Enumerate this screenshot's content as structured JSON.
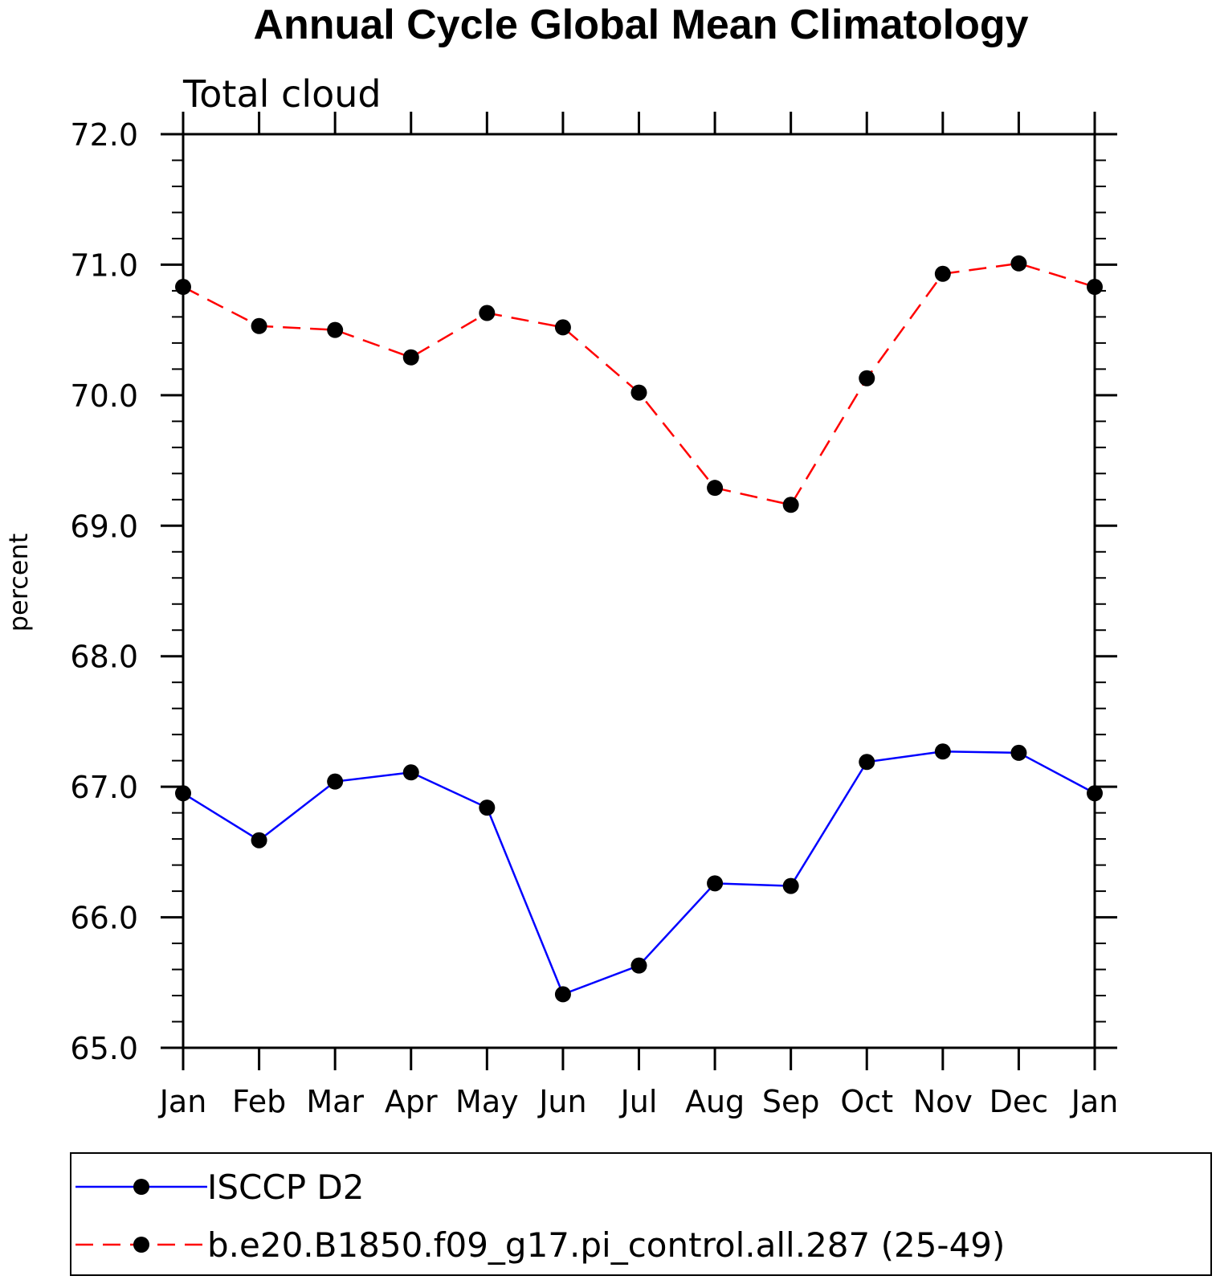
{
  "chart_data": {
    "type": "line",
    "title": "Annual Cycle Global Mean Climatology",
    "subtitle": "Total cloud",
    "ylabel": "percent",
    "xlabel": "",
    "categories": [
      "Jan",
      "Feb",
      "Mar",
      "Apr",
      "May",
      "Jun",
      "Jul",
      "Aug",
      "Sep",
      "Oct",
      "Nov",
      "Dec",
      "Jan"
    ],
    "ylim": [
      65.0,
      72.0
    ],
    "yticks": [
      "65.0",
      "66.0",
      "67.0",
      "68.0",
      "69.0",
      "70.0",
      "71.0",
      "72.0"
    ],
    "series": [
      {
        "name": "ISCCP D2",
        "color": "#0000ff",
        "dash": "solid",
        "values": [
          66.95,
          66.59,
          67.04,
          67.11,
          66.84,
          65.41,
          65.63,
          66.26,
          66.24,
          67.19,
          67.27,
          67.26,
          66.95
        ]
      },
      {
        "name": "b.e20.B1850.f09_g17.pi_control.all.287 (25-49)",
        "color": "#ff0000",
        "dash": "dashed",
        "values": [
          70.83,
          70.53,
          70.5,
          70.29,
          70.63,
          70.52,
          70.02,
          69.29,
          69.16,
          70.13,
          70.93,
          71.01,
          70.83
        ]
      }
    ],
    "marker": "filled-circle",
    "marker_color": "#000000",
    "grid": false,
    "legend_position": "bottom"
  }
}
